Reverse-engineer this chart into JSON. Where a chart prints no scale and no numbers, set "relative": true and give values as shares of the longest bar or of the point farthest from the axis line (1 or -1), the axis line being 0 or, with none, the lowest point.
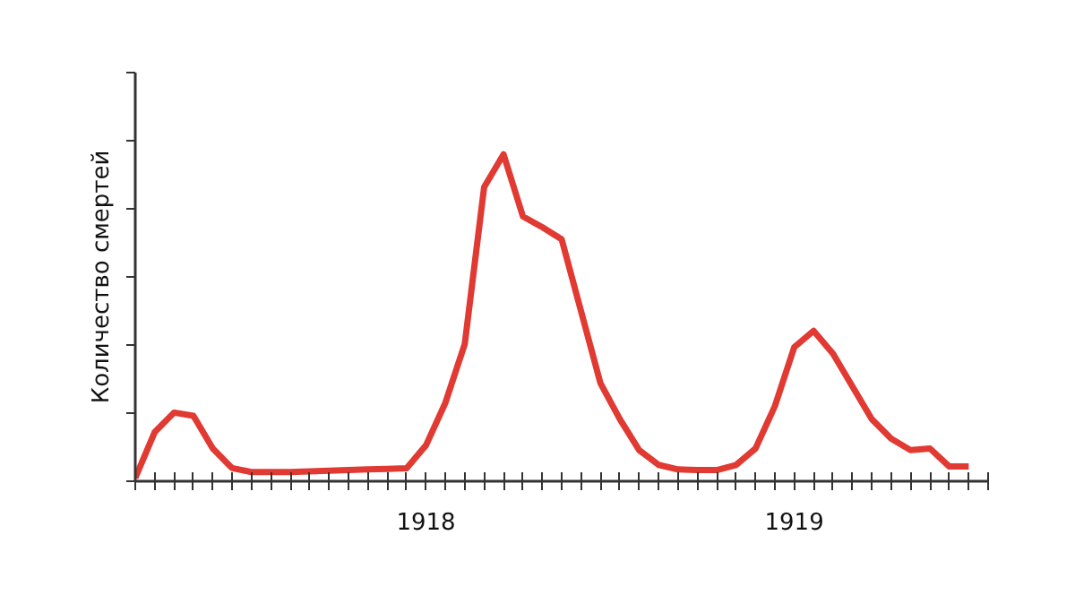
{
  "chart_data": {
    "type": "line",
    "relative": true,
    "ylabel": "Количество смертей",
    "categories": [
      null,
      null,
      null,
      null,
      null,
      null,
      null,
      null,
      null,
      null,
      null,
      null,
      null,
      null,
      null,
      "1918",
      null,
      null,
      null,
      null,
      null,
      null,
      null,
      null,
      null,
      null,
      null,
      null,
      null,
      null,
      null,
      null,
      null,
      null,
      "1919",
      null,
      null,
      null,
      null,
      null,
      null,
      null,
      null,
      null,
      null
    ],
    "grid": false,
    "marker": "none",
    "line_style": "solid",
    "series": [
      {
        "color": "#e03a33",
        "values": [
          0.01,
          0.15,
          0.21,
          0.2,
          0.1,
          0.04,
          0.028,
          0.028,
          0.028,
          0.03,
          0.032,
          0.034,
          0.036,
          0.038,
          0.04,
          0.11,
          0.24,
          0.42,
          0.9,
          1,
          0.81,
          0.777,
          0.74,
          0.52,
          0.3,
          0.19,
          0.095,
          0.05,
          0.036,
          0.034,
          0.034,
          0.05,
          0.1,
          0.23,
          0.41,
          0.46,
          0.39,
          0.29,
          0.19,
          0.13,
          0.095,
          0.1,
          0.045,
          0.045,
          null
        ]
      }
    ]
  }
}
